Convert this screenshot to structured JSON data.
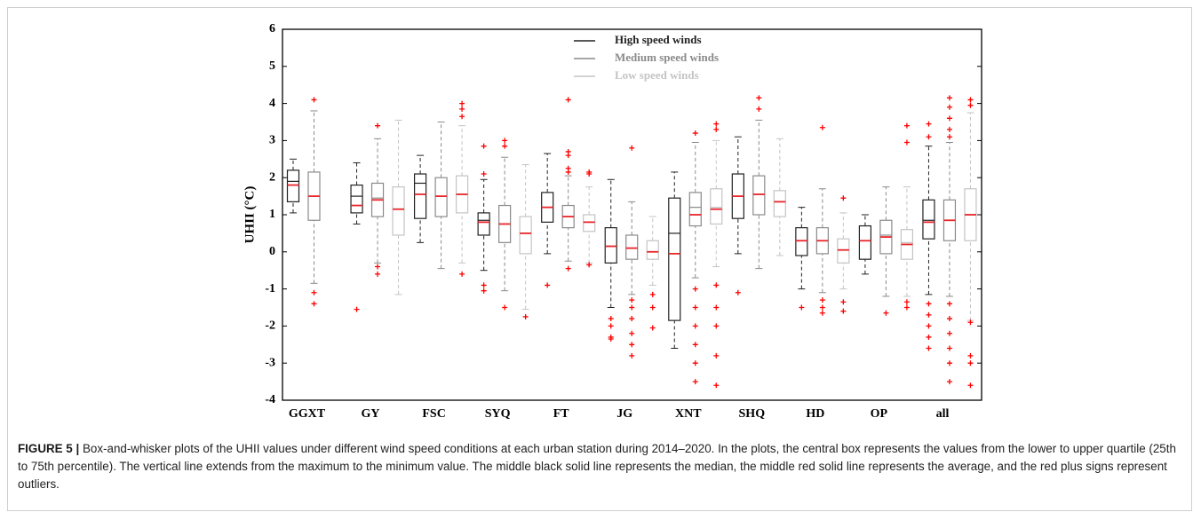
{
  "chart_data": {
    "type": "box",
    "y_label": "UHII (°C)",
    "categories": [
      "GGXT",
      "GY",
      "FSC",
      "SYQ",
      "FT",
      "JG",
      "XNT",
      "SHQ",
      "HD",
      "OP",
      "all"
    ],
    "ylim": [
      -4,
      6
    ],
    "yticks": [
      -4,
      -3,
      -2,
      -1,
      0,
      1,
      2,
      3,
      4,
      5,
      6
    ],
    "mean_color": "#e8262a",
    "outlier_color": "#ff0000",
    "series": [
      {
        "name": "High speed winds",
        "color": "#222222",
        "values": [
          {
            "min": 1.05,
            "q1": 1.35,
            "median": 1.9,
            "mean": 1.8,
            "q3": 2.2,
            "max": 2.5,
            "outliers": []
          },
          {
            "min": 0.75,
            "q1": 1.05,
            "median": 1.5,
            "mean": 1.25,
            "q3": 1.8,
            "max": 2.4,
            "outliers": [
              -1.55
            ]
          },
          {
            "min": 0.25,
            "q1": 0.9,
            "median": 1.85,
            "mean": 1.55,
            "q3": 2.1,
            "max": 2.6,
            "outliers": []
          },
          {
            "min": -0.5,
            "q1": 0.45,
            "median": 0.85,
            "mean": 0.8,
            "q3": 1.05,
            "max": 1.95,
            "outliers": [
              2.85,
              2.1,
              -0.9,
              -1.05
            ]
          },
          {
            "min": -0.05,
            "q1": 0.8,
            "median": 1.2,
            "mean": 1.2,
            "q3": 1.6,
            "max": 2.65,
            "outliers": [
              -0.9
            ]
          },
          {
            "min": -1.5,
            "q1": -0.3,
            "median": 0.15,
            "mean": 0.15,
            "q3": 0.65,
            "max": 1.95,
            "outliers": [
              -1.8,
              -2.0,
              -2.3,
              -2.35
            ]
          },
          {
            "min": -2.6,
            "q1": -1.85,
            "median": 0.5,
            "mean": -0.05,
            "q3": 1.45,
            "max": 2.15,
            "outliers": []
          },
          {
            "min": -0.05,
            "q1": 0.9,
            "median": 1.5,
            "mean": 1.5,
            "q3": 2.1,
            "max": 3.1,
            "outliers": [
              -1.1
            ]
          },
          {
            "min": -1.0,
            "q1": -0.1,
            "median": 0.3,
            "mean": 0.3,
            "q3": 0.65,
            "max": 1.2,
            "outliers": [
              -1.5
            ]
          },
          {
            "min": -0.6,
            "q1": -0.2,
            "median": 0.3,
            "mean": 0.3,
            "q3": 0.7,
            "max": 1.0,
            "outliers": []
          },
          {
            "min": -1.15,
            "q1": 0.35,
            "median": 0.85,
            "mean": 0.8,
            "q3": 1.4,
            "max": 2.85,
            "outliers": [
              3.45,
              3.1,
              -1.4,
              -1.7,
              -2.0,
              -2.3,
              -2.6
            ]
          }
        ]
      },
      {
        "name": "Medium speed winds",
        "color": "#8a8a8a",
        "values": [
          {
            "min": -0.85,
            "q1": 0.85,
            "median": 1.5,
            "mean": 1.5,
            "q3": 2.15,
            "max": 3.8,
            "outliers": [
              4.1,
              -1.1,
              -1.4
            ]
          },
          {
            "min": -0.3,
            "q1": 0.95,
            "median": 1.45,
            "mean": 1.4,
            "q3": 1.85,
            "max": 3.05,
            "outliers": [
              3.4,
              -0.4,
              -0.6
            ]
          },
          {
            "min": -0.45,
            "q1": 0.95,
            "median": 1.5,
            "mean": 1.5,
            "q3": 2.0,
            "max": 3.5,
            "outliers": []
          },
          {
            "min": -1.05,
            "q1": 0.25,
            "median": 0.75,
            "mean": 0.75,
            "q3": 1.25,
            "max": 2.55,
            "outliers": [
              3.0,
              2.85,
              -1.5
            ]
          },
          {
            "min": -0.25,
            "q1": 0.65,
            "median": 0.95,
            "mean": 0.95,
            "q3": 1.25,
            "max": 2.05,
            "outliers": [
              4.1,
              2.7,
              2.6,
              2.25,
              2.15,
              -0.45
            ]
          },
          {
            "min": -1.15,
            "q1": -0.2,
            "median": 0.1,
            "mean": 0.1,
            "q3": 0.45,
            "max": 1.35,
            "outliers": [
              2.8,
              -1.3,
              -1.5,
              -1.8,
              -2.2,
              -2.5,
              -2.8
            ]
          },
          {
            "min": -0.7,
            "q1": 0.7,
            "median": 1.2,
            "mean": 1.0,
            "q3": 1.6,
            "max": 2.95,
            "outliers": [
              3.2,
              -1.0,
              -1.5,
              -2.0,
              -2.5,
              -3.0,
              -3.5
            ]
          },
          {
            "min": -0.45,
            "q1": 1.0,
            "median": 1.55,
            "mean": 1.55,
            "q3": 2.05,
            "max": 3.55,
            "outliers": [
              4.15,
              3.85
            ]
          },
          {
            "min": -1.1,
            "q1": -0.05,
            "median": 0.3,
            "mean": 0.3,
            "q3": 0.65,
            "max": 1.7,
            "outliers": [
              3.35,
              -1.3,
              -1.5,
              -1.65
            ]
          },
          {
            "min": -1.2,
            "q1": -0.05,
            "median": 0.45,
            "mean": 0.4,
            "q3": 0.85,
            "max": 1.75,
            "outliers": [
              -1.65
            ]
          },
          {
            "min": -1.2,
            "q1": 0.3,
            "median": 0.85,
            "mean": 0.85,
            "q3": 1.4,
            "max": 2.95,
            "outliers": [
              4.15,
              3.9,
              3.6,
              3.3,
              3.1,
              -1.4,
              -1.8,
              -2.2,
              -2.6,
              -3.0,
              -3.5
            ]
          }
        ]
      },
      {
        "name": "Low speed winds",
        "color": "#c4c4c4",
        "values": [
          null,
          {
            "min": -1.15,
            "q1": 0.45,
            "median": 1.15,
            "mean": 1.15,
            "q3": 1.75,
            "max": 3.55,
            "outliers": []
          },
          {
            "min": -0.3,
            "q1": 1.05,
            "median": 1.55,
            "mean": 1.55,
            "q3": 2.05,
            "max": 3.4,
            "outliers": [
              4.0,
              3.85,
              3.65,
              -0.6
            ]
          },
          {
            "min": -1.55,
            "q1": -0.05,
            "median": 0.5,
            "mean": 0.5,
            "q3": 0.95,
            "max": 2.35,
            "outliers": [
              -1.75
            ]
          },
          {
            "min": -0.3,
            "q1": 0.55,
            "median": 0.8,
            "mean": 0.8,
            "q3": 1.0,
            "max": 1.75,
            "outliers": [
              2.15,
              2.1,
              -0.35
            ]
          },
          {
            "min": -0.9,
            "q1": -0.2,
            "median": 0.0,
            "mean": 0.0,
            "q3": 0.3,
            "max": 0.95,
            "outliers": [
              -1.15,
              -1.5,
              -2.05
            ]
          },
          {
            "min": -0.4,
            "q1": 0.75,
            "median": 1.2,
            "mean": 1.15,
            "q3": 1.7,
            "max": 3.0,
            "outliers": [
              3.45,
              3.3,
              -0.9,
              -1.5,
              -2.0,
              -2.8,
              -3.6
            ]
          },
          {
            "min": -0.1,
            "q1": 0.95,
            "median": 1.35,
            "mean": 1.35,
            "q3": 1.65,
            "max": 3.05,
            "outliers": []
          },
          {
            "min": -1.0,
            "q1": -0.3,
            "median": 0.05,
            "mean": 0.05,
            "q3": 0.35,
            "max": 1.05,
            "outliers": [
              1.45,
              -1.35,
              -1.6
            ]
          },
          {
            "min": -1.2,
            "q1": -0.2,
            "median": 0.25,
            "mean": 0.2,
            "q3": 0.6,
            "max": 1.75,
            "outliers": [
              3.4,
              2.95,
              -1.35,
              -1.5
            ]
          },
          {
            "min": -1.85,
            "q1": 0.3,
            "median": 1.0,
            "mean": 1.0,
            "q3": 1.7,
            "max": 3.75,
            "outliers": [
              4.1,
              3.95,
              -1.9,
              -2.8,
              -3.0,
              -3.6
            ]
          }
        ]
      }
    ]
  },
  "caption": {
    "label": "FIGURE 5 |",
    "text": "Box-and-whisker plots of the UHII values under different wind speed conditions at each urban station during 2014–2020. In the plots, the central box represents the values from the lower to upper quartile (25th to 75th percentile). The vertical line extends from the maximum to the minimum value. The middle black solid line represents the median, the middle red solid line represents the average, and the red plus signs represent outliers."
  }
}
